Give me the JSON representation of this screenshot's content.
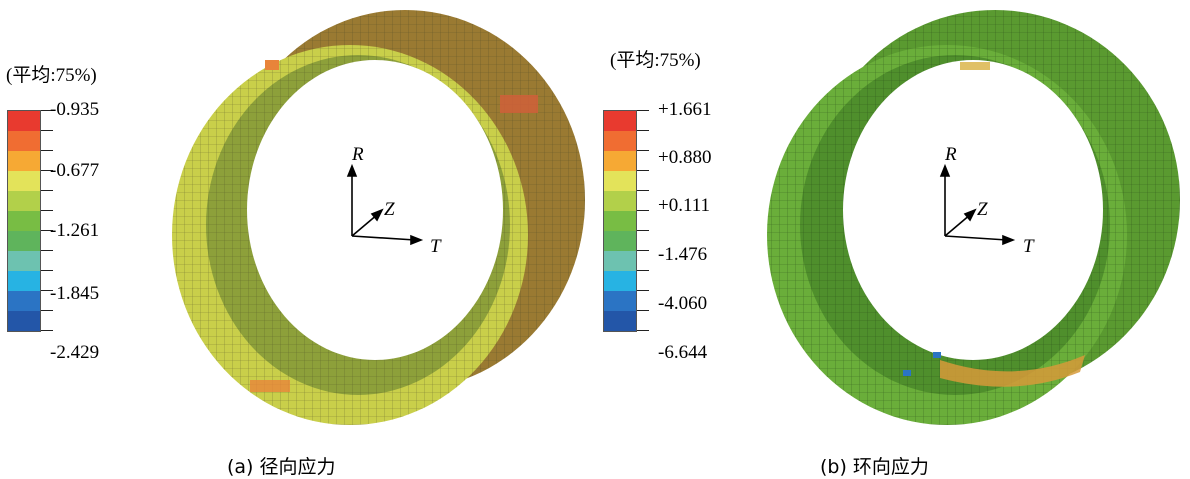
{
  "panel_a": {
    "legend_title": "(平均:75%)",
    "legend_values": [
      "-0.935",
      "-0.677",
      "-1.261",
      "-1.845",
      "-2.429"
    ],
    "band_colors": [
      "#e83a2f",
      "#f06d32",
      "#f6a934",
      "#e3e35a",
      "#b2d04a",
      "#78bd44",
      "#5fb45c",
      "#6dc2b0",
      "#27b3e3",
      "#2b74c4",
      "#2356a8"
    ],
    "ring_face": "#c9cf4a",
    "ring_inner": "#8da03a",
    "ring_outer": "#9a7a32",
    "caption": "(a) 径向应力",
    "axes": {
      "r": "R",
      "z": "Z",
      "t": "T"
    }
  },
  "panel_b": {
    "legend_title": "(平均:75%)",
    "legend_values": [
      "+1.661",
      "+0.880",
      "+0.111",
      "-1.476",
      "-4.060",
      "-6.644"
    ],
    "band_colors": [
      "#e83a2f",
      "#f06d32",
      "#f6a934",
      "#e3e35a",
      "#b2d04a",
      "#78bd44",
      "#5fb45c",
      "#6dc2b0",
      "#27b3e3",
      "#2b74c4",
      "#2356a8"
    ],
    "ring_face": "#6aae3a",
    "ring_inner": "#4f8f2c",
    "ring_outer": "#5a9a30",
    "caption": "(b) 环向应力",
    "axes": {
      "r": "R",
      "z": "Z",
      "t": "T"
    }
  }
}
